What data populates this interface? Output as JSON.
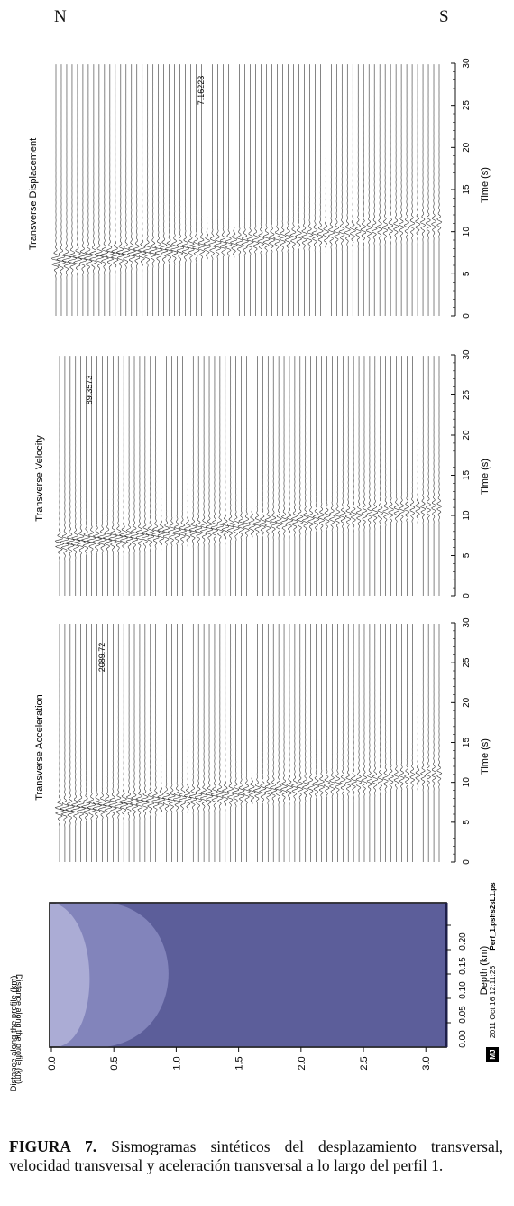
{
  "orientation": {
    "north": "N",
    "south": "S"
  },
  "panels": [
    {
      "title": "Transverse Displacement",
      "max_amplitude": "7.16223",
      "xlabel": "Time (s)"
    },
    {
      "title": "Transverse Velocity",
      "max_amplitude": "89.3573",
      "xlabel": "Time (s)"
    },
    {
      "title": "Transverse Acceleration",
      "max_amplitude": "2089.72",
      "xlabel": "Time (s)"
    }
  ],
  "time_ticks": [
    "0",
    "5",
    "10",
    "15",
    "20",
    "25",
    "30"
  ],
  "profile": {
    "depth_ticks": [
      "0.20",
      "0.15",
      "0.10",
      "0.05",
      "0.00"
    ],
    "depth_label": "Depth (km)",
    "distance_ticks": [
      "0.0",
      "0.5",
      "1.0",
      "1.5",
      "2.0",
      "2.5",
      "3.0"
    ],
    "distance_label": "Distance along the profile (km)",
    "layer_colors": [
      "#5c5e9a",
      "#8284bb",
      "#abacd5"
    ]
  },
  "stamp": {
    "logo": "MJ",
    "timestamp": "2011 Oct 16 12:11:26",
    "filename": "Perf_1.pshs2sL1.ps"
  },
  "caption": {
    "label": "FIGURA 7.",
    "text": "Sismogramas sintéticos del desplazamiento transversal, velocidad transversal y aceleración transversal a lo largo del perfil 1."
  },
  "chart_data": [
    {
      "type": "line",
      "title": "Transverse Displacement",
      "xlabel": "Time (s)",
      "xlim": [
        0,
        30
      ],
      "max_amplitude": 7.16223,
      "arrival": {
        "start_time_s": 6.5,
        "end_time_s": 11.0
      }
    },
    {
      "type": "line",
      "title": "Transverse Velocity",
      "xlabel": "Time (s)",
      "xlim": [
        0,
        30
      ],
      "max_amplitude": 89.3573,
      "arrival": {
        "start_time_s": 6.5,
        "end_time_s": 11.0
      }
    },
    {
      "type": "line",
      "title": "Transverse Acceleration",
      "xlabel": "Time (s)",
      "xlim": [
        0,
        30
      ],
      "max_amplitude": 2089.72,
      "arrival": {
        "start_time_s": 6.5,
        "end_time_s": 11.0
      }
    },
    {
      "type": "area",
      "xlabel": "Depth (km)",
      "ylabel": "Distance along the profile (km)",
      "xlim": [
        0.2,
        0.0
      ],
      "ylim": [
        0.0,
        3.15
      ]
    }
  ]
}
